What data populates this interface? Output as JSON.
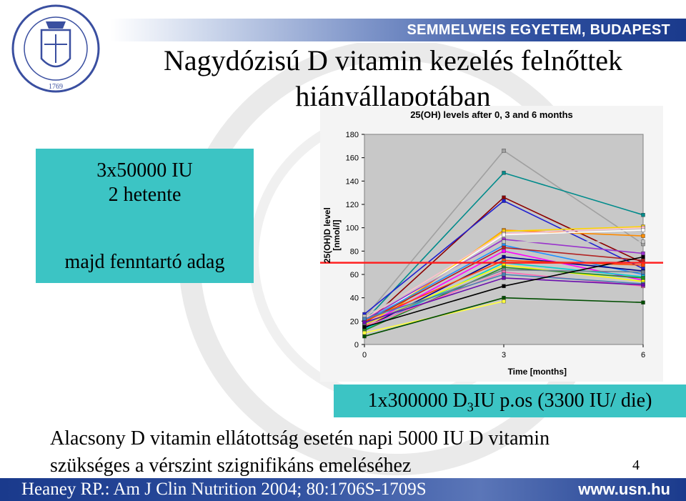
{
  "header": {
    "university": "SEMMELWEIS EGYETEM, BUDAPEST"
  },
  "title": {
    "line1": "Nagydózisú D vitamin kezelés felnőttek",
    "line2": "hiányállapotában"
  },
  "regimen_box": {
    "line1": "3x50000 IU",
    "line2": "2 hetente",
    "line3": "majd fenntartó adag"
  },
  "dose_box": {
    "prefix": "1x300000 D",
    "subscript": "3",
    "suffix": "IU p.os (3300 IU/ die)"
  },
  "note": {
    "line1": "Alacsony D vitamin ellátottság esetén napi 5000 IU D vitamin",
    "line2": "szükséges a vérszint szignifikáns emeléséhez"
  },
  "page_number": "4",
  "footer": {
    "reference": "Heaney RP.: Am J Clin Nutrition 2004; 80:1706S-1709S",
    "website": "www.usn.hu"
  },
  "colors": {
    "teal_box": "#3cc4c4",
    "banner_blue": "#1a3a8c",
    "plot_bg": "#c8c8c8",
    "threshold_line": "#ff2020"
  },
  "chart_data": {
    "type": "line",
    "title": "25(OH) levels after 0, 3 and 6 months",
    "xlabel": "Time [months]",
    "ylabel": "25(OH)D level [nmol/l]",
    "x": [
      0,
      3,
      6
    ],
    "xticks": [
      "0",
      "3",
      "6"
    ],
    "ylim": [
      0,
      180
    ],
    "yticks": [
      0,
      20,
      40,
      60,
      80,
      100,
      120,
      140,
      160,
      180
    ],
    "grid": false,
    "threshold": 70,
    "series": [
      {
        "color": "#a0a0a0",
        "values": [
          23,
          166,
          86
        ]
      },
      {
        "color": "#008b8b",
        "values": [
          20,
          147,
          111
        ]
      },
      {
        "color": "#8b0000",
        "values": [
          17,
          126,
          70
        ]
      },
      {
        "color": "#2020d0",
        "values": [
          26,
          123,
          65
        ]
      },
      {
        "color": "#ff8c00",
        "values": [
          12,
          98,
          93
        ]
      },
      {
        "color": "#ffd700",
        "values": [
          15,
          97,
          101
        ]
      },
      {
        "color": "#ffc0cb",
        "values": [
          22,
          95,
          100
        ]
      },
      {
        "color": "#ffffff",
        "values": [
          18,
          94,
          98
        ]
      },
      {
        "color": "#9932cc",
        "values": [
          21,
          90,
          78
        ]
      },
      {
        "color": "#c8c8c8",
        "values": [
          24,
          88,
          88
        ]
      },
      {
        "color": "#1e90ff",
        "values": [
          20,
          85,
          60
        ]
      },
      {
        "color": "#b22222",
        "values": [
          19,
          83,
          72
        ]
      },
      {
        "color": "#ff00ff",
        "values": [
          16,
          80,
          55
        ]
      },
      {
        "color": "#00008b",
        "values": [
          14,
          75,
          63
        ]
      },
      {
        "color": "#ff4500",
        "values": [
          20,
          72,
          68
        ]
      },
      {
        "color": "#00ced1",
        "values": [
          13,
          70,
          58
        ]
      },
      {
        "color": "#ffff00",
        "values": [
          17,
          68,
          54
        ]
      },
      {
        "color": "#228b22",
        "values": [
          12,
          66,
          57
        ]
      },
      {
        "color": "#708090",
        "values": [
          18,
          64,
          62
        ]
      },
      {
        "color": "#ff69b4",
        "values": [
          15,
          62,
          50
        ]
      },
      {
        "color": "#4682b4",
        "values": [
          22,
          60,
          52
        ]
      },
      {
        "color": "#6a0dad",
        "values": [
          19,
          57,
          51
        ]
      },
      {
        "color": "#000000",
        "values": [
          15,
          50,
          75
        ]
      },
      {
        "color": "#ffff40",
        "values": [
          10,
          37,
          null
        ]
      },
      {
        "color": "#004d00",
        "values": [
          7,
          40,
          36
        ]
      }
    ]
  }
}
